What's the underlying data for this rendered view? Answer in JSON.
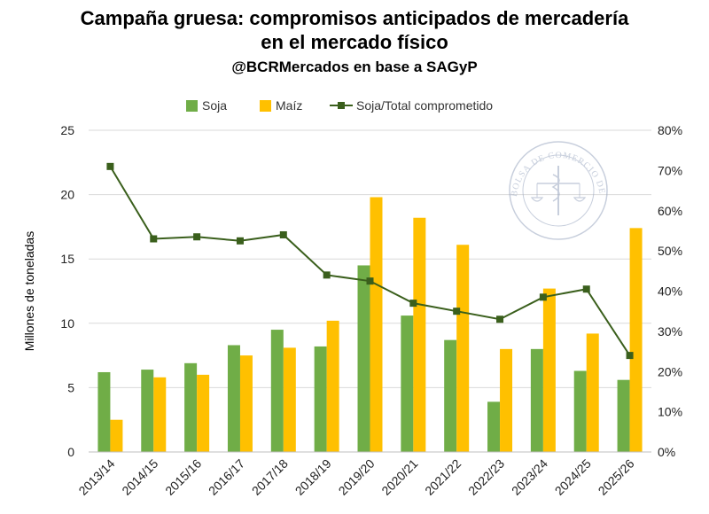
{
  "title": {
    "line1": "Campaña gruesa: compromisos anticipados de mercadería",
    "line2": "en el mercado físico",
    "subtitle": "@BCRMercados en base a SAGyP"
  },
  "logo": {
    "text": "BOLSA DE COMERCIO DE ROSARIO",
    "icon": "bcr-seal-icon"
  },
  "colors": {
    "soja": "#70ad47",
    "maiz": "#ffc000",
    "ratio": "#3a5f1c",
    "grid": "#d9d9d9"
  },
  "chart_data": {
    "type": "bar",
    "categories": [
      "2013/14",
      "2014/15",
      "2015/16",
      "2016/17",
      "2017/18",
      "2018/19",
      "2019/20",
      "2020/21",
      "2021/22",
      "2022/23",
      "2023/24",
      "2024/25",
      "2025/26"
    ],
    "series": [
      {
        "name": "Soja",
        "type": "bar",
        "axis": "left",
        "values": [
          6.2,
          6.4,
          6.9,
          8.3,
          9.5,
          8.2,
          14.5,
          10.6,
          8.7,
          3.9,
          8.0,
          6.3,
          5.6
        ]
      },
      {
        "name": "Maíz",
        "type": "bar",
        "axis": "left",
        "values": [
          2.5,
          5.8,
          6.0,
          7.5,
          8.1,
          10.2,
          19.8,
          18.2,
          16.1,
          8.0,
          12.7,
          9.2,
          17.4
        ]
      },
      {
        "name": "Soja/Total comprometido",
        "type": "line",
        "axis": "right",
        "values": [
          0.71,
          0.53,
          0.535,
          0.525,
          0.54,
          0.44,
          0.425,
          0.37,
          0.35,
          0.33,
          0.385,
          0.405,
          0.24
        ]
      }
    ],
    "ylabel": "Millones de toneladas",
    "ylim": [
      0,
      25
    ],
    "yticks": [
      "0",
      "5",
      "10",
      "15",
      "20",
      "25"
    ],
    "y2lim": [
      0,
      0.8
    ],
    "y2ticks": [
      "0%",
      "10%",
      "20%",
      "30%",
      "40%",
      "50%",
      "60%",
      "70%",
      "80%"
    ],
    "grid": true,
    "legend_position": "top-center"
  }
}
